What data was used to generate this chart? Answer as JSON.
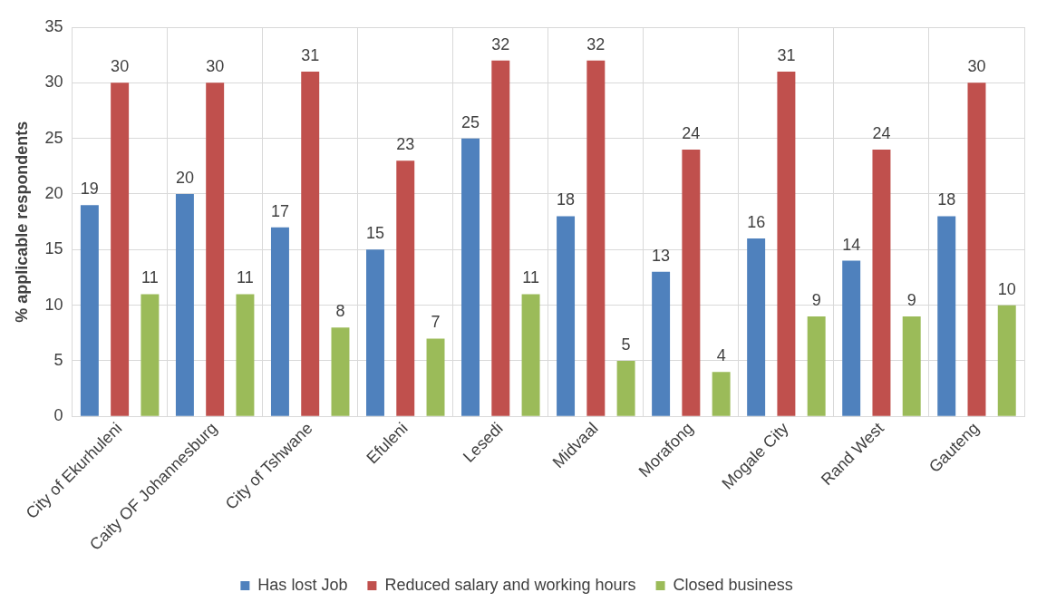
{
  "chart_data": {
    "type": "bar",
    "ylabel": "% applicable respondents",
    "categories": [
      "City of Ekurhuleni",
      "Caity OF Johannesburg",
      "City of Tshwane",
      "Efuleni",
      "Lesedi",
      "Midvaal",
      "Morafong",
      "Mogale City",
      "Rand West",
      "Gauteng"
    ],
    "series": [
      {
        "name": "Has lost Job",
        "color": "#4f81bd",
        "values": [
          19,
          20,
          17,
          15,
          25,
          18,
          13,
          16,
          14,
          18
        ]
      },
      {
        "name": "Reduced salary and working hours",
        "color": "#c0504d",
        "values": [
          30,
          30,
          31,
          23,
          32,
          32,
          24,
          31,
          24,
          30
        ]
      },
      {
        "name": "Closed business",
        "color": "#9bbb59",
        "values": [
          11,
          11,
          8,
          7,
          11,
          5,
          4,
          9,
          9,
          10
        ]
      }
    ],
    "ylim": [
      0,
      35
    ],
    "yticks": [
      0,
      5,
      10,
      15,
      20,
      25,
      30,
      35
    ],
    "grid": true,
    "legend": "bottom",
    "data_labels": true
  }
}
